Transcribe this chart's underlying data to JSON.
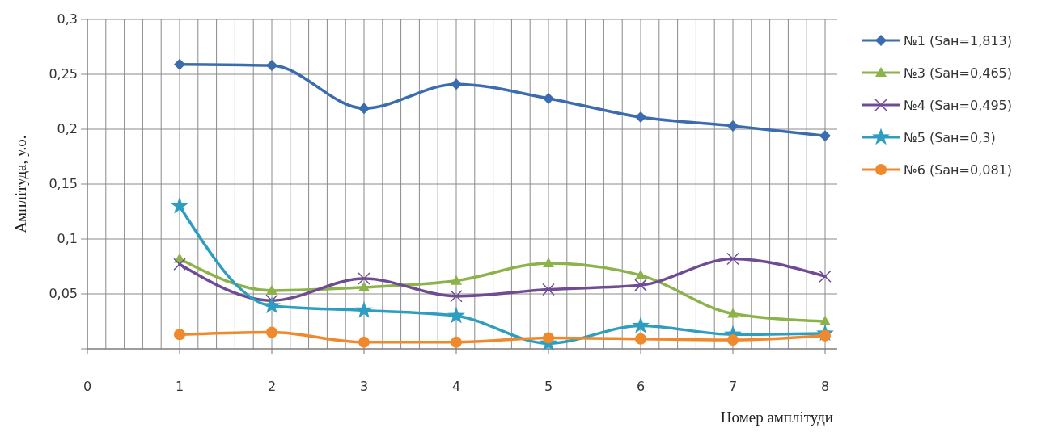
{
  "chart_data": {
    "type": "line",
    "xlabel": "Номер амплітуди",
    "ylabel": "Амплітуда, у.о.",
    "x": [
      1,
      2,
      3,
      4,
      5,
      6,
      7,
      8
    ],
    "xlim": [
      0,
      8
    ],
    "ylim": [
      0,
      0.3
    ],
    "xticks": [
      0,
      {
        "value": 0.2,
        "label": null
      },
      {
        "value": 0.4,
        "label": null
      },
      {
        "value": 0.6,
        "label": null
      },
      {
        "value": 0.8,
        "label": null
      },
      1,
      {
        "value": 1.2,
        "label": null
      },
      {
        "value": 1.4,
        "label": null
      },
      {
        "value": 1.6,
        "label": null
      },
      {
        "value": 1.8,
        "label": null
      },
      2,
      {
        "value": 2.2,
        "label": null
      },
      {
        "value": 2.4,
        "label": null
      },
      {
        "value": 2.6,
        "label": null
      },
      {
        "value": 2.8,
        "label": null
      },
      3,
      {
        "value": 3.2,
        "label": null
      },
      {
        "value": 3.4,
        "label": null
      },
      {
        "value": 3.6,
        "label": null
      },
      {
        "value": 3.8,
        "label": null
      },
      4,
      {
        "value": 4.2,
        "label": null
      },
      {
        "value": 4.4,
        "label": null
      },
      {
        "value": 4.6,
        "label": null
      },
      {
        "value": 4.8,
        "label": null
      },
      5,
      {
        "value": 5.2,
        "label": null
      },
      {
        "value": 5.4,
        "label": null
      },
      {
        "value": 5.6,
        "label": null
      },
      {
        "value": 5.8,
        "label": null
      },
      6,
      {
        "value": 6.2,
        "label": null
      },
      {
        "value": 6.4,
        "label": null
      },
      {
        "value": 6.6,
        "label": null
      },
      {
        "value": 6.8,
        "label": null
      },
      7,
      {
        "value": 7.2,
        "label": null
      },
      {
        "value": 7.4,
        "label": null
      },
      {
        "value": 7.6,
        "label": null
      },
      {
        "value": 7.8,
        "label": null
      },
      8
    ],
    "yticks": [
      {
        "value": 0,
        "label": null
      },
      {
        "value": 0.05,
        "label": "0,05"
      },
      {
        "value": 0.1,
        "label": "0,1"
      },
      {
        "value": 0.15,
        "label": "0,15"
      },
      {
        "value": 0.2,
        "label": "0,2"
      },
      {
        "value": 0.25,
        "label": "0,25"
      },
      {
        "value": 0.3,
        "label": "0,3"
      }
    ],
    "grid": true,
    "legend": "right",
    "line_style": "solid",
    "series": [
      {
        "name": "№1 (Saн=1,813)",
        "color": "#3c6cb0",
        "marker": "diamond",
        "values": [
          0.259,
          0.258,
          0.219,
          0.241,
          0.228,
          0.211,
          0.203,
          0.194
        ]
      },
      {
        "name": "№3 (Saн=0,465)",
        "color": "#8cb24a",
        "marker": "triangle",
        "values": [
          0.082,
          0.053,
          0.056,
          0.062,
          0.078,
          0.067,
          0.032,
          0.025
        ]
      },
      {
        "name": "№4 (Saн=0,495)",
        "color": "#6e4b93",
        "marker": "cross",
        "values": [
          0.077,
          0.044,
          0.064,
          0.048,
          0.054,
          0.058,
          0.082,
          0.066
        ]
      },
      {
        "name": "№5 (Saн=0,3)",
        "color": "#2e9ec0",
        "marker": "star",
        "values": [
          0.13,
          0.039,
          0.035,
          0.03,
          0.005,
          0.021,
          0.013,
          0.014
        ]
      },
      {
        "name": "№6 (Saн=0,081)",
        "color": "#f0882c",
        "marker": "circle",
        "values": [
          0.013,
          0.015,
          0.006,
          0.006,
          0.01,
          0.009,
          0.008,
          0.012
        ]
      }
    ]
  }
}
